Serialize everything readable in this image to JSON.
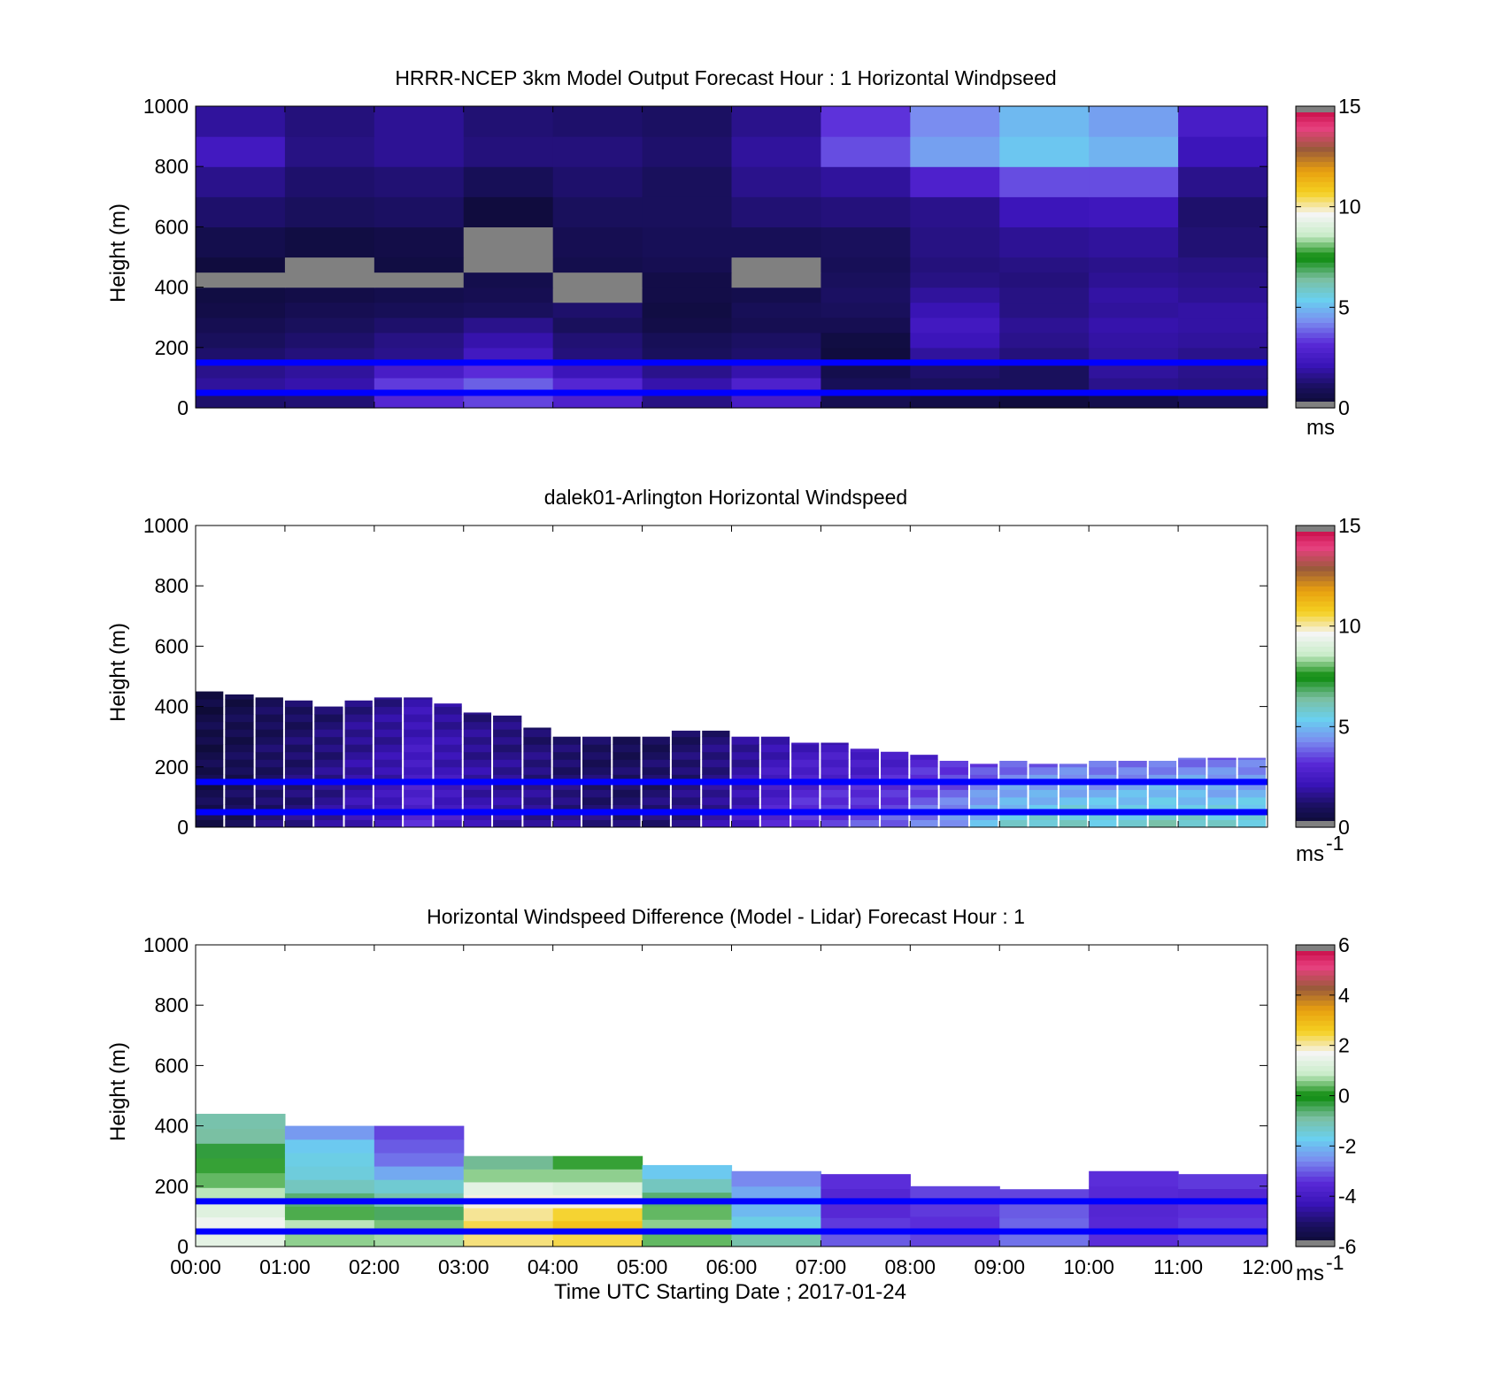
{
  "x_labels": [
    "00:00",
    "01:00",
    "02:00",
    "03:00",
    "04:00",
    "05:00",
    "06:00",
    "07:00",
    "08:00",
    "09:00",
    "10:00",
    "11:00",
    "12:00"
  ],
  "x_axis_title": "Time UTC  Starting Date ; 2017-01-24",
  "colors": {
    "frame": "#000000",
    "reference_line": "#0000ff",
    "missing": "#808080",
    "colormap": [
      "#0a0a2a",
      "#1a1060",
      "#3a14b8",
      "#5a2ad8",
      "#7a8cf0",
      "#6ad0f0",
      "#7bbf9f",
      "#0a8a0a",
      "#c8ecc8",
      "#f5f5f5",
      "#f5d020",
      "#e8a010",
      "#9a5a3a",
      "#e84080",
      "#c0003a"
    ]
  },
  "chart_data": [
    {
      "type": "heatmap",
      "title": "HRRR-NCEP 3km Model Output   Forecast Hour : 1 Horizontal Windpseed",
      "ylabel": "Height (m)",
      "yticks": [
        "0",
        "200",
        "400",
        "600",
        "800",
        "1000"
      ],
      "ylim": [
        0,
        1000
      ],
      "xlim": [
        0,
        12
      ],
      "x_tick_labels_shown": false,
      "colorbar": {
        "ticks": [
          "0",
          "5",
          "10",
          "15"
        ],
        "range": [
          0,
          15
        ],
        "unit": "ms",
        "unit_exp": ""
      },
      "reference_lines_m": [
        150,
        50
      ],
      "x_bins": [
        0,
        1,
        2,
        3,
        4,
        5,
        6,
        7,
        8,
        9,
        10,
        11,
        12
      ],
      "y_bins_m": [
        0,
        50,
        100,
        150,
        200,
        250,
        300,
        350,
        400,
        450,
        500,
        600,
        700,
        800,
        900,
        1000
      ],
      "values": [
        [
          1.2,
          1.3,
          3.0,
          3.5,
          2.8,
          1.5,
          2.6,
          0.8,
          0.6,
          0.4,
          0.7,
          1.0
        ],
        [
          1.8,
          2.0,
          3.4,
          3.8,
          3.0,
          2.0,
          2.8,
          0.9,
          1.0,
          1.0,
          1.6,
          1.5
        ],
        [
          1.6,
          1.8,
          2.6,
          3.2,
          2.2,
          1.6,
          2.0,
          0.7,
          1.2,
          1.0,
          1.8,
          1.6
        ],
        [
          1.2,
          1.4,
          1.6,
          2.4,
          1.4,
          1.0,
          1.2,
          0.4,
          1.8,
          1.4,
          1.8,
          1.6
        ],
        [
          1.0,
          1.2,
          1.5,
          2.0,
          1.3,
          0.9,
          1.1,
          0.5,
          2.2,
          1.6,
          1.9,
          1.8
        ],
        [
          0.8,
          1.0,
          1.2,
          1.6,
          1.0,
          0.6,
          0.8,
          0.8,
          2.4,
          1.7,
          2.0,
          1.9
        ],
        [
          0.6,
          0.8,
          0.9,
          1.0,
          1.2,
          0.5,
          0.9,
          1.0,
          2.1,
          1.5,
          1.8,
          1.9
        ],
        [
          0.5,
          0.6,
          0.7,
          0.8,
          0.0,
          0.6,
          0.7,
          1.1,
          1.8,
          1.5,
          1.9,
          1.7
        ],
        [
          0.0,
          0.0,
          0.0,
          0.7,
          0.0,
          0.6,
          0.0,
          1.0,
          1.5,
          1.4,
          1.7,
          1.6
        ],
        [
          0.4,
          0.0,
          0.5,
          0.0,
          0.7,
          0.8,
          0.0,
          0.9,
          1.4,
          1.5,
          1.6,
          1.5
        ],
        [
          0.7,
          0.5,
          0.6,
          0.0,
          0.8,
          0.9,
          0.9,
          1.0,
          1.5,
          1.7,
          1.8,
          1.3
        ],
        [
          1.2,
          1.0,
          1.1,
          0.4,
          1.0,
          1.0,
          1.3,
          1.4,
          1.6,
          2.2,
          2.3,
          1.2
        ],
        [
          1.6,
          1.2,
          1.3,
          0.9,
          1.2,
          1.0,
          1.6,
          1.8,
          2.8,
          3.6,
          3.6,
          1.6
        ],
        [
          2.4,
          1.5,
          1.7,
          1.4,
          1.4,
          1.2,
          1.8,
          3.6,
          4.6,
          5.2,
          4.9,
          2.2
        ],
        [
          1.8,
          1.4,
          1.7,
          1.3,
          1.2,
          1.1,
          1.6,
          3.3,
          4.3,
          5.0,
          4.6,
          2.6
        ]
      ]
    },
    {
      "type": "heatmap",
      "title": "dalek01-Arlington  Horizontal Windspeed",
      "ylabel": "Height (m)",
      "yticks": [
        "0",
        "200",
        "400",
        "600",
        "800",
        "1000"
      ],
      "ylim": [
        0,
        1000
      ],
      "xlim": [
        0,
        12
      ],
      "x_tick_labels_shown": false,
      "colorbar": {
        "ticks": [
          "0",
          "5",
          "10",
          "15"
        ],
        "range": [
          0,
          15
        ],
        "unit": "ms",
        "unit_exp": "-1"
      },
      "reference_lines_m": [
        150,
        50
      ],
      "x_bins": [
        0,
        0.33,
        0.67,
        1,
        1.33,
        1.67,
        2,
        2.33,
        2.67,
        3,
        3.33,
        3.67,
        4,
        4.33,
        4.67,
        5,
        5.33,
        5.67,
        6,
        6.33,
        6.67,
        7,
        7.33,
        7.67,
        8,
        8.33,
        8.67,
        9,
        9.33,
        9.67,
        10,
        10.33,
        10.67,
        11,
        11.33,
        11.67,
        12
      ],
      "top_heights_m": [
        450,
        440,
        430,
        420,
        400,
        420,
        430,
        430,
        410,
        380,
        370,
        330,
        300,
        300,
        300,
        300,
        320,
        320,
        300,
        300,
        280,
        280,
        260,
        250,
        240,
        220,
        210,
        220,
        210,
        210,
        220,
        220,
        220,
        230,
        230,
        230
      ],
      "speeds_ms": [
        0.8,
        1.0,
        1.3,
        1.5,
        1.8,
        2.2,
        2.4,
        3.0,
        2.6,
        2.2,
        2.0,
        1.8,
        1.6,
        1.4,
        1.3,
        1.4,
        1.6,
        1.9,
        2.4,
        3.0,
        3.4,
        3.5,
        3.6,
        3.8,
        4.2,
        4.6,
        5.2,
        5.6,
        5.8,
        5.9,
        5.7,
        5.8,
        6.0,
        5.9,
        5.8,
        5.8
      ]
    },
    {
      "type": "heatmap",
      "title": "Horizontal Windspeed Difference (Model - Lidar) Forecast Hour : 1",
      "ylabel": "Height (m)",
      "yticks": [
        "0",
        "200",
        "400",
        "600",
        "800",
        "1000"
      ],
      "ylim": [
        0,
        1000
      ],
      "xlim": [
        0,
        12
      ],
      "x_tick_labels_shown": true,
      "colorbar": {
        "ticks": [
          "-6",
          "-4",
          "-2",
          "0",
          "2",
          "4",
          "6"
        ],
        "range": [
          -6,
          6
        ],
        "unit": "ms",
        "unit_exp": "-1"
      },
      "reference_lines_m": [
        150,
        50
      ],
      "x_bins": [
        0,
        1,
        2,
        3,
        4,
        5,
        6,
        7,
        8,
        9,
        10,
        11,
        12
      ],
      "top_heights_m": [
        440,
        400,
        400,
        300,
        300,
        270,
        250,
        240,
        200,
        190,
        250,
        240
      ],
      "profiles": [
        [
          1.4,
          1.6,
          1.3,
          0.8,
          0.4,
          0.2,
          -0.3,
          -0.9,
          -1.0
        ],
        [
          0.6,
          0.8,
          0.3,
          -0.6,
          -1.2,
          -1.5,
          -1.6,
          -1.8,
          -2.4
        ],
        [
          0.7,
          0.5,
          -0.5,
          -1.0,
          -1.4,
          -2.2,
          -2.8,
          -3.0,
          -3.2
        ],
        [
          2.2,
          2.4,
          2.1,
          1.8,
          1.4,
          0.6,
          -0.8
        ],
        [
          2.4,
          2.8,
          2.5,
          1.8,
          1.2,
          0.6,
          0.2
        ],
        [
          0.4,
          0.6,
          0.4,
          -0.6,
          -1.2,
          -1.8
        ],
        [
          -1.0,
          -1.6,
          -2.0,
          -2.2,
          -2.6
        ],
        [
          -3.0,
          -3.3,
          -3.5,
          -3.6,
          -3.4
        ],
        [
          -3.2,
          -3.4,
          -3.3,
          -3.2
        ],
        [
          -2.8,
          -2.9,
          -3.0,
          -3.2
        ],
        [
          -3.4,
          -3.5,
          -3.6,
          -3.5,
          -3.4
        ],
        [
          -3.2,
          -3.3,
          -3.4,
          -3.6,
          -3.3
        ]
      ]
    }
  ]
}
